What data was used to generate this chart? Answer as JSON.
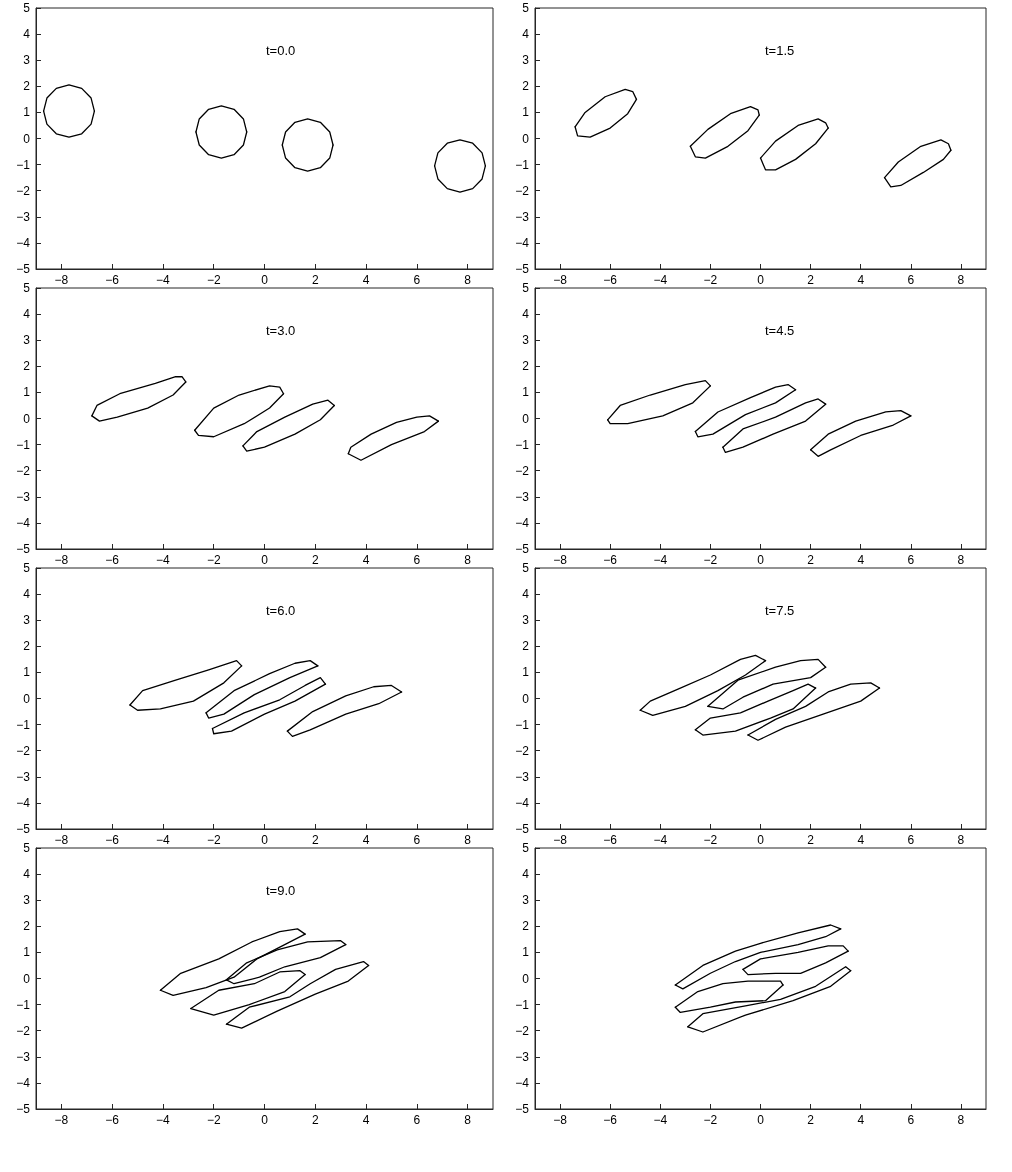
{
  "chart_data": [
    {
      "type": "line",
      "title": "t=0.0",
      "marker": "none",
      "xlim": [
        -9,
        9
      ],
      "ylim": [
        -5,
        5
      ],
      "xticks": [
        -8,
        -6,
        -4,
        -2,
        0,
        2,
        4,
        6,
        8
      ],
      "yticks": [
        -5,
        -4,
        -3,
        -2,
        -1,
        0,
        1,
        2,
        3,
        4,
        5
      ],
      "series": [
        {
          "color": "#000000",
          "x": [
            -8.7,
            -8.57,
            -8.2,
            -7.7,
            -7.2,
            -6.83,
            -6.7
          ],
          "values": [
            1.05,
            1.55,
            1.92,
            2.05,
            1.92,
            1.55,
            1.05
          ]
        },
        {
          "color": "#000000",
          "x": [
            -8.7,
            -8.57,
            -8.2,
            -7.7,
            -7.2,
            -6.83,
            -6.7
          ],
          "values": [
            1.05,
            0.55,
            0.18,
            0.05,
            0.18,
            0.55,
            1.05
          ]
        },
        {
          "color": "#000000",
          "x": [
            -2.7,
            -2.57,
            -2.2,
            -1.7,
            -1.2,
            -0.83,
            -0.7
          ],
          "values": [
            0.25,
            0.75,
            1.12,
            1.25,
            1.12,
            0.75,
            0.25
          ]
        },
        {
          "color": "#000000",
          "x": [
            -2.7,
            -2.57,
            -2.2,
            -1.7,
            -1.2,
            -0.83,
            -0.7
          ],
          "values": [
            0.25,
            -0.25,
            -0.62,
            -0.75,
            -0.62,
            -0.25,
            0.25
          ]
        },
        {
          "color": "#000000",
          "x": [
            0.7,
            0.83,
            1.2,
            1.7,
            2.2,
            2.57,
            2.7
          ],
          "values": [
            -0.25,
            0.25,
            0.62,
            0.75,
            0.62,
            0.25,
            -0.25
          ]
        },
        {
          "color": "#000000",
          "x": [
            0.7,
            0.83,
            1.2,
            1.7,
            2.2,
            2.57,
            2.7
          ],
          "values": [
            -0.25,
            -0.75,
            -1.12,
            -1.25,
            -1.12,
            -0.75,
            -0.25
          ]
        },
        {
          "color": "#000000",
          "x": [
            6.7,
            6.83,
            7.2,
            7.7,
            8.2,
            8.57,
            8.7
          ],
          "values": [
            -1.05,
            -0.55,
            -0.18,
            -0.05,
            -0.18,
            -0.55,
            -1.05
          ]
        },
        {
          "color": "#000000",
          "x": [
            6.7,
            6.83,
            7.2,
            7.7,
            8.2,
            8.57,
            8.7
          ],
          "values": [
            -1.05,
            -1.55,
            -1.92,
            -2.05,
            -1.92,
            -1.55,
            -1.05
          ]
        }
      ]
    },
    {
      "type": "line",
      "title": "t=1.5",
      "marker": "none",
      "xlim": [
        -9,
        9
      ],
      "ylim": [
        -5,
        5
      ],
      "xticks": [
        -8,
        -6,
        -4,
        -2,
        0,
        2,
        4,
        6,
        8
      ],
      "yticks": [
        -5,
        -4,
        -3,
        -2,
        -1,
        0,
        1,
        2,
        3,
        4,
        5
      ],
      "series": [
        {
          "color": "#000000",
          "x": [
            -7.4,
            -7.0,
            -6.2,
            -5.4,
            -5.1,
            -4.95
          ],
          "values": [
            0.45,
            1.0,
            1.6,
            1.88,
            1.8,
            1.5
          ]
        },
        {
          "color": "#000000",
          "x": [
            -7.4,
            -7.3,
            -6.8,
            -6.0,
            -5.3,
            -4.95
          ],
          "values": [
            0.45,
            0.1,
            0.05,
            0.4,
            0.95,
            1.5
          ]
        },
        {
          "color": "#000000",
          "x": [
            -2.8,
            -2.1,
            -1.2,
            -0.4,
            -0.1,
            -0.05
          ],
          "values": [
            -0.3,
            0.35,
            0.95,
            1.22,
            1.1,
            0.9
          ]
        },
        {
          "color": "#000000",
          "x": [
            -2.8,
            -2.6,
            -2.2,
            -1.3,
            -0.5,
            -0.05
          ],
          "values": [
            -0.3,
            -0.7,
            -0.75,
            -0.3,
            0.3,
            0.9
          ]
        },
        {
          "color": "#000000",
          "x": [
            0.0,
            0.6,
            1.5,
            2.3,
            2.6,
            2.7
          ],
          "values": [
            -0.75,
            -0.1,
            0.5,
            0.75,
            0.6,
            0.4
          ]
        },
        {
          "color": "#000000",
          "x": [
            0.0,
            0.2,
            0.6,
            1.4,
            2.2,
            2.7
          ],
          "values": [
            -0.75,
            -1.2,
            -1.2,
            -0.8,
            -0.2,
            0.4
          ]
        },
        {
          "color": "#000000",
          "x": [
            4.95,
            5.5,
            6.4,
            7.2,
            7.5,
            7.6
          ],
          "values": [
            -1.5,
            -0.9,
            -0.3,
            -0.05,
            -0.2,
            -0.45
          ]
        },
        {
          "color": "#000000",
          "x": [
            4.95,
            5.2,
            5.6,
            6.5,
            7.3,
            7.6
          ],
          "values": [
            -1.5,
            -1.85,
            -1.8,
            -1.3,
            -0.8,
            -0.45
          ]
        }
      ]
    },
    {
      "type": "line",
      "title": "t=3.0",
      "marker": "none",
      "xlim": [
        -9,
        9
      ],
      "ylim": [
        -5,
        5
      ],
      "xticks": [
        -8,
        -6,
        -4,
        -2,
        0,
        2,
        4,
        6,
        8
      ],
      "yticks": [
        -5,
        -4,
        -3,
        -2,
        -1,
        0,
        1,
        2,
        3,
        4,
        5
      ],
      "series": [
        {
          "color": "#000000",
          "x": [
            -6.8,
            -6.6,
            -5.7,
            -4.3,
            -3.5,
            -3.25,
            -3.1
          ],
          "values": [
            0.1,
            0.5,
            0.95,
            1.35,
            1.6,
            1.6,
            1.4
          ]
        },
        {
          "color": "#000000",
          "x": [
            -6.8,
            -6.5,
            -5.8,
            -4.6,
            -3.6,
            -3.1
          ],
          "values": [
            0.1,
            -0.1,
            0.05,
            0.4,
            0.9,
            1.4
          ]
        },
        {
          "color": "#000000",
          "x": [
            -2.75,
            -2.0,
            -1.0,
            0.2,
            0.6,
            0.75
          ],
          "values": [
            -0.45,
            0.4,
            0.9,
            1.25,
            1.2,
            0.95
          ]
        },
        {
          "color": "#000000",
          "x": [
            -2.75,
            -2.6,
            -2.0,
            -0.8,
            0.2,
            0.75
          ],
          "values": [
            -0.45,
            -0.65,
            -0.7,
            -0.2,
            0.4,
            0.95
          ]
        },
        {
          "color": "#000000",
          "x": [
            -0.85,
            -0.3,
            0.8,
            1.9,
            2.5,
            2.75
          ],
          "values": [
            -1.05,
            -0.5,
            0.05,
            0.55,
            0.7,
            0.5
          ]
        },
        {
          "color": "#000000",
          "x": [
            -0.85,
            -0.7,
            0.0,
            1.2,
            2.2,
            2.75
          ],
          "values": [
            -1.05,
            -1.25,
            -1.1,
            -0.6,
            -0.05,
            0.5
          ]
        },
        {
          "color": "#000000",
          "x": [
            3.3,
            3.4,
            4.2,
            5.2,
            6.0,
            6.5,
            6.85
          ],
          "values": [
            -1.35,
            -1.1,
            -0.6,
            -0.15,
            0.05,
            0.1,
            -0.1
          ]
        },
        {
          "color": "#000000",
          "x": [
            3.3,
            3.8,
            5.0,
            6.3,
            6.85
          ],
          "values": [
            -1.35,
            -1.6,
            -1.0,
            -0.5,
            -0.1
          ]
        }
      ]
    },
    {
      "type": "line",
      "title": "t=4.5",
      "marker": "none",
      "xlim": [
        -9,
        9
      ],
      "ylim": [
        -5,
        5
      ],
      "xticks": [
        -8,
        -6,
        -4,
        -2,
        0,
        2,
        4,
        6,
        8
      ],
      "yticks": [
        -5,
        -4,
        -3,
        -2,
        -1,
        0,
        1,
        2,
        3,
        4,
        5
      ],
      "series": [
        {
          "color": "#000000",
          "x": [
            -6.1,
            -5.6,
            -4.4,
            -3.0,
            -2.2,
            -2.0
          ],
          "values": [
            -0.05,
            0.5,
            0.9,
            1.3,
            1.45,
            1.25
          ]
        },
        {
          "color": "#000000",
          "x": [
            -6.1,
            -6.0,
            -5.3,
            -3.9,
            -2.7,
            -2.0
          ],
          "values": [
            -0.05,
            -0.2,
            -0.2,
            0.1,
            0.6,
            1.25
          ]
        },
        {
          "color": "#000000",
          "x": [
            -2.6,
            -1.7,
            -0.4,
            0.6,
            1.1,
            1.4
          ],
          "values": [
            -0.5,
            0.25,
            0.8,
            1.2,
            1.3,
            1.1
          ]
        },
        {
          "color": "#000000",
          "x": [
            -2.6,
            -2.5,
            -1.9,
            -0.6,
            0.6,
            1.4
          ],
          "values": [
            -0.5,
            -0.7,
            -0.6,
            0.15,
            0.6,
            1.1
          ]
        },
        {
          "color": "#000000",
          "x": [
            -1.5,
            -0.7,
            0.6,
            1.8,
            2.3,
            2.6
          ],
          "values": [
            -1.1,
            -0.4,
            0.05,
            0.6,
            0.75,
            0.55
          ]
        },
        {
          "color": "#000000",
          "x": [
            -1.5,
            -1.4,
            -0.7,
            0.5,
            1.8,
            2.6
          ],
          "values": [
            -1.1,
            -1.3,
            -1.1,
            -0.6,
            -0.1,
            0.55
          ]
        },
        {
          "color": "#000000",
          "x": [
            2.0,
            2.7,
            3.8,
            5.0,
            5.6,
            6.0
          ],
          "values": [
            -1.2,
            -0.6,
            -0.1,
            0.25,
            0.3,
            0.1
          ]
        },
        {
          "color": "#000000",
          "x": [
            2.0,
            2.3,
            2.8,
            4.0,
            5.3,
            6.0
          ],
          "values": [
            -1.2,
            -1.45,
            -1.2,
            -0.65,
            -0.25,
            0.1
          ]
        }
      ]
    },
    {
      "type": "line",
      "title": "t=6.0",
      "marker": "none",
      "xlim": [
        -9,
        9
      ],
      "ylim": [
        -5,
        5
      ],
      "xticks": [
        -8,
        -6,
        -4,
        -2,
        0,
        2,
        4,
        6,
        8
      ],
      "yticks": [
        -5,
        -4,
        -3,
        -2,
        -1,
        0,
        1,
        2,
        3,
        4,
        5
      ],
      "series": [
        {
          "color": "#000000",
          "x": [
            -5.3,
            -4.8,
            -3.5,
            -2.2,
            -1.1,
            -0.9
          ],
          "values": [
            -0.25,
            0.3,
            0.7,
            1.1,
            1.45,
            1.25
          ]
        },
        {
          "color": "#000000",
          "x": [
            -5.3,
            -5.0,
            -4.1,
            -2.8,
            -1.6,
            -0.9
          ],
          "values": [
            -0.25,
            -0.45,
            -0.4,
            -0.1,
            0.6,
            1.25
          ]
        },
        {
          "color": "#000000",
          "x": [
            -2.3,
            -1.2,
            0.2,
            1.2,
            1.8,
            2.1
          ],
          "values": [
            -0.55,
            0.3,
            0.95,
            1.35,
            1.45,
            1.25
          ]
        },
        {
          "color": "#000000",
          "x": [
            -2.3,
            -2.2,
            -1.6,
            -0.4,
            1.0,
            2.1
          ],
          "values": [
            -0.55,
            -0.75,
            -0.6,
            0.15,
            0.8,
            1.25
          ]
        },
        {
          "color": "#000000",
          "x": [
            -2.05,
            -0.8,
            0.6,
            1.6,
            2.2,
            2.4
          ],
          "values": [
            -1.15,
            -0.55,
            -0.05,
            0.5,
            0.8,
            0.55
          ]
        },
        {
          "color": "#000000",
          "x": [
            -2.05,
            -2.0,
            -1.3,
            0.0,
            1.2,
            2.4
          ],
          "values": [
            -1.15,
            -1.35,
            -1.25,
            -0.6,
            -0.1,
            0.55
          ]
        },
        {
          "color": "#000000",
          "x": [
            0.9,
            1.9,
            3.2,
            4.3,
            5.0,
            5.4
          ],
          "values": [
            -1.25,
            -0.5,
            0.1,
            0.45,
            0.5,
            0.25
          ]
        },
        {
          "color": "#000000",
          "x": [
            0.9,
            1.1,
            1.8,
            3.2,
            4.5,
            5.4
          ],
          "values": [
            -1.25,
            -1.45,
            -1.2,
            -0.6,
            -0.2,
            0.25
          ]
        }
      ]
    },
    {
      "type": "line",
      "title": "t=7.5",
      "marker": "none",
      "xlim": [
        -9,
        9
      ],
      "ylim": [
        -5,
        5
      ],
      "xticks": [
        -8,
        -6,
        -4,
        -2,
        0,
        2,
        4,
        6,
        8
      ],
      "yticks": [
        -5,
        -4,
        -3,
        -2,
        -1,
        0,
        1,
        2,
        3,
        4,
        5
      ],
      "series": [
        {
          "color": "#000000",
          "x": [
            -4.8,
            -4.4,
            -3.2,
            -2.0,
            -0.8,
            -0.2,
            0.2
          ],
          "values": [
            -0.45,
            -0.1,
            0.4,
            0.9,
            1.5,
            1.65,
            1.45
          ]
        },
        {
          "color": "#000000",
          "x": [
            -4.8,
            -4.3,
            -3.0,
            -1.7,
            -0.6,
            0.2
          ],
          "values": [
            -0.45,
            -0.65,
            -0.3,
            0.3,
            0.9,
            1.45
          ]
        },
        {
          "color": "#000000",
          "x": [
            -2.1,
            -0.9,
            0.6,
            1.6,
            2.3,
            2.6
          ],
          "values": [
            -0.3,
            0.7,
            1.2,
            1.45,
            1.5,
            1.2
          ]
        },
        {
          "color": "#000000",
          "x": [
            -2.1,
            -1.5,
            -0.7,
            0.5,
            2.0,
            2.6
          ],
          "values": [
            -0.3,
            -0.4,
            0.05,
            0.55,
            0.8,
            1.2
          ]
        },
        {
          "color": "#000000",
          "x": [
            -2.6,
            -2.0,
            -0.8,
            0.3,
            1.3,
            1.9,
            2.2
          ],
          "values": [
            -1.2,
            -0.75,
            -0.55,
            -0.1,
            0.3,
            0.55,
            0.4
          ]
        },
        {
          "color": "#000000",
          "x": [
            -2.6,
            -2.3,
            -1.0,
            0.4,
            1.3,
            2.2
          ],
          "values": [
            -1.2,
            -1.4,
            -1.25,
            -0.75,
            -0.4,
            0.4
          ]
        },
        {
          "color": "#000000",
          "x": [
            -0.5,
            0.6,
            1.8,
            2.7,
            3.6,
            4.4,
            4.75
          ],
          "values": [
            -1.4,
            -0.8,
            -0.3,
            0.25,
            0.55,
            0.6,
            0.4
          ]
        },
        {
          "color": "#000000",
          "x": [
            -0.5,
            -0.1,
            1.0,
            2.5,
            4.0,
            4.75
          ],
          "values": [
            -1.4,
            -1.6,
            -1.1,
            -0.6,
            -0.1,
            0.4
          ]
        }
      ]
    },
    {
      "type": "line",
      "title": "t=9.0",
      "marker": "none",
      "xlim": [
        -9,
        9
      ],
      "ylim": [
        -5,
        5
      ],
      "xticks": [
        -8,
        -6,
        -4,
        -2,
        0,
        2,
        4,
        6,
        8
      ],
      "yticks": [
        -5,
        -4,
        -3,
        -2,
        -1,
        0,
        1,
        2,
        3,
        4,
        5
      ],
      "series": [
        {
          "color": "#000000",
          "x": [
            -4.1,
            -3.3,
            -1.8,
            -0.5,
            0.6,
            1.3,
            1.6
          ],
          "values": [
            -0.45,
            0.2,
            0.75,
            1.4,
            1.8,
            1.9,
            1.7
          ]
        },
        {
          "color": "#000000",
          "x": [
            -4.1,
            -3.6,
            -2.3,
            -1.2,
            -0.3,
            0.7,
            1.6
          ],
          "values": [
            -0.45,
            -0.65,
            -0.35,
            0.05,
            0.75,
            1.25,
            1.7
          ]
        },
        {
          "color": "#000000",
          "x": [
            -1.5,
            -0.7,
            0.5,
            1.7,
            3.0,
            3.2
          ],
          "values": [
            -0.05,
            0.6,
            1.1,
            1.4,
            1.45,
            1.3
          ]
        },
        {
          "color": "#000000",
          "x": [
            -1.5,
            -1.2,
            -0.2,
            0.8,
            2.2,
            3.2
          ],
          "values": [
            -0.05,
            -0.2,
            0.05,
            0.45,
            0.8,
            1.3
          ]
        },
        {
          "color": "#000000",
          "x": [
            -2.9,
            -1.8,
            -0.4,
            0.6,
            1.4,
            1.6
          ],
          "values": [
            -1.15,
            -0.45,
            -0.2,
            0.25,
            0.3,
            0.15
          ]
        },
        {
          "color": "#000000",
          "x": [
            -2.9,
            -2.0,
            -0.6,
            0.8,
            1.6
          ],
          "values": [
            -1.15,
            -1.4,
            -1.0,
            -0.5,
            0.15
          ]
        },
        {
          "color": "#000000",
          "x": [
            -1.5,
            -0.6,
            1.0,
            1.8,
            2.8,
            3.9,
            4.1
          ],
          "values": [
            -1.75,
            -1.1,
            -0.7,
            -0.2,
            0.35,
            0.65,
            0.5
          ]
        },
        {
          "color": "#000000",
          "x": [
            -1.5,
            -0.9,
            0.5,
            2.0,
            3.3,
            4.1
          ],
          "values": [
            -1.75,
            -1.9,
            -1.25,
            -0.6,
            -0.1,
            0.5
          ]
        }
      ]
    },
    {
      "type": "line",
      "marker": "none",
      "xlim": [
        -9,
        9
      ],
      "ylim": [
        -5,
        5
      ],
      "xticks": [
        -8,
        -6,
        -4,
        -2,
        0,
        2,
        4,
        6,
        8
      ],
      "yticks": [
        -5,
        -4,
        -3,
        -2,
        -1,
        0,
        1,
        2,
        3,
        4,
        5
      ],
      "series": [
        {
          "color": "#000000",
          "x": [
            -3.4,
            -2.3,
            -1.0,
            0.0,
            1.5,
            2.8,
            3.2
          ],
          "values": [
            -0.25,
            0.5,
            1.05,
            1.35,
            1.75,
            2.05,
            1.9
          ]
        },
        {
          "color": "#000000",
          "x": [
            -3.4,
            -3.1,
            -2.0,
            -1.0,
            0.0,
            1.5,
            2.6,
            3.2
          ],
          "values": [
            -0.25,
            -0.4,
            0.2,
            0.65,
            1.0,
            1.3,
            1.6,
            1.9
          ]
        },
        {
          "color": "#000000",
          "x": [
            -0.7,
            0.0,
            1.5,
            2.7,
            3.3,
            3.5
          ],
          "values": [
            0.35,
            0.75,
            1.0,
            1.25,
            1.25,
            1.05
          ]
        },
        {
          "color": "#000000",
          "x": [
            -0.7,
            -0.5,
            0.6,
            1.6,
            2.6,
            3.5
          ],
          "values": [
            0.35,
            0.15,
            0.2,
            0.2,
            0.6,
            1.05
          ]
        },
        {
          "color": "#000000",
          "x": [
            -3.4,
            -2.5,
            -1.5,
            -0.5,
            0.8,
            0.9
          ],
          "values": [
            -1.1,
            -0.5,
            -0.2,
            -0.1,
            -0.1,
            -0.25
          ]
        },
        {
          "color": "#000000",
          "x": [
            -3.4,
            -3.2,
            -2.0,
            -1.0,
            0.2,
            0.9
          ],
          "values": [
            -1.1,
            -1.3,
            -1.1,
            -0.9,
            -0.85,
            -0.25
          ]
        },
        {
          "color": "#000000",
          "x": [
            -2.9,
            -2.3,
            -0.6,
            0.8,
            2.2,
            3.4,
            3.6
          ],
          "values": [
            -1.85,
            -1.35,
            -1.05,
            -0.8,
            -0.3,
            0.45,
            0.3
          ]
        },
        {
          "color": "#000000",
          "x": [
            -2.9,
            -2.3,
            -0.6,
            1.3,
            2.8,
            3.6
          ],
          "values": [
            -1.85,
            -2.05,
            -1.4,
            -0.85,
            -0.3,
            0.3
          ]
        }
      ]
    }
  ]
}
